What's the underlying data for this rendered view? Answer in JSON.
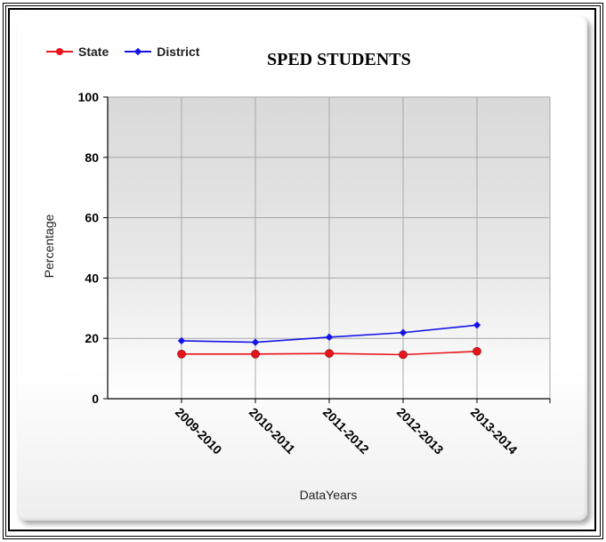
{
  "chart_data": {
    "type": "line",
    "title": "SPED STUDENTS",
    "xlabel": "DataYears",
    "ylabel": "Percentage",
    "categories": [
      "2009-2010",
      "2010-2011",
      "2011-2012",
      "2012-2013",
      "2013-2014"
    ],
    "ylim": [
      0,
      100
    ],
    "yticks": [
      0,
      20,
      40,
      60,
      80,
      100
    ],
    "grid": true,
    "legend_position": "top-left",
    "series": [
      {
        "name": "State",
        "color": "#e8141c",
        "marker": "circle",
        "values": [
          14.8,
          14.8,
          15.0,
          14.6,
          15.7
        ]
      },
      {
        "name": "District",
        "color": "#1414e8",
        "marker": "diamond",
        "values": [
          19.2,
          18.7,
          20.4,
          21.9,
          24.4
        ]
      }
    ]
  }
}
